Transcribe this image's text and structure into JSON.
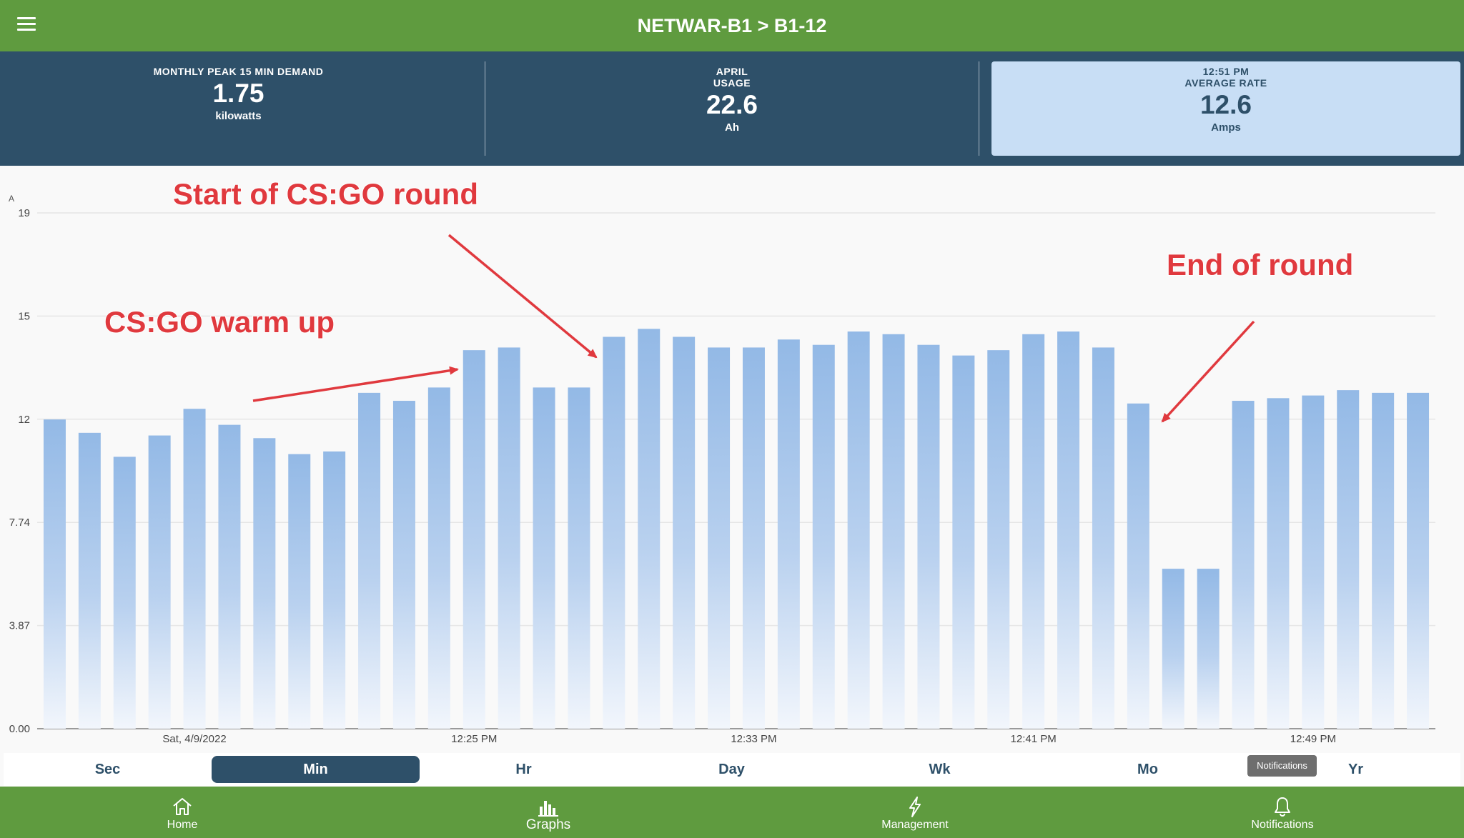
{
  "header": {
    "title": "NETWAR-B1 > B1-12"
  },
  "stats": [
    {
      "label_lines": [
        "MONTHLY PEAK 15 MIN DEMAND"
      ],
      "value": "1.75",
      "unit": "kilowatts"
    },
    {
      "label_lines": [
        "APRIL",
        "USAGE"
      ],
      "value": "22.6",
      "unit": "Ah"
    },
    {
      "label_lines": [
        "12:51 PM",
        "AVERAGE RATE"
      ],
      "value": "12.6",
      "unit": "Amps"
    }
  ],
  "annotations": {
    "start": "Start of CS:GO round",
    "warmup": "CS:GO warm up",
    "end": "End of round"
  },
  "range_tabs": [
    {
      "label": "Sec"
    },
    {
      "label": "Min",
      "active": true
    },
    {
      "label": "Hr"
    },
    {
      "label": "Day"
    },
    {
      "label": "Wk"
    },
    {
      "label": "Mo"
    },
    {
      "label": "Yr"
    }
  ],
  "tooltip": "Notifications",
  "nav": [
    {
      "label": "Home",
      "icon": "home-icon"
    },
    {
      "label": "Graphs",
      "icon": "bar-chart-icon",
      "active": true
    },
    {
      "label": "Management",
      "icon": "lightning-icon"
    },
    {
      "label": "Notifications",
      "icon": "bell-icon"
    }
  ],
  "colors": {
    "green": "#5f9b3f",
    "navy": "#2e5069",
    "bar": "#93b9e6",
    "annotation": "#e0393e"
  },
  "chart_data": {
    "type": "bar",
    "ylabel": "A",
    "yticks": [
      "0.00",
      "3.87",
      "7.74",
      "12",
      "15",
      "19"
    ],
    "ytick_values": [
      0,
      3.87,
      7.74,
      11.61,
      15.48,
      19.35
    ],
    "ylim": [
      0,
      19.35
    ],
    "xtick_labels": [
      {
        "label": "Sat, 4/9/2022",
        "at_bar": 4
      },
      {
        "label": "12:25 PM",
        "at_bar": 12
      },
      {
        "label": "12:33 PM",
        "at_bar": 20
      },
      {
        "label": "12:41 PM",
        "at_bar": 28
      },
      {
        "label": "12:49 PM",
        "at_bar": 36
      }
    ],
    "values": [
      11.6,
      11.1,
      10.2,
      11.0,
      12.0,
      11.4,
      10.9,
      10.3,
      10.4,
      12.6,
      12.3,
      12.8,
      14.2,
      14.3,
      12.8,
      12.8,
      14.7,
      15.0,
      14.7,
      14.3,
      14.3,
      14.6,
      14.4,
      14.9,
      14.8,
      14.4,
      14.0,
      14.2,
      14.8,
      14.9,
      14.3,
      12.2,
      6.0,
      6.0,
      12.3,
      12.4,
      12.5,
      12.7,
      12.6,
      12.6
    ],
    "grid": true
  }
}
